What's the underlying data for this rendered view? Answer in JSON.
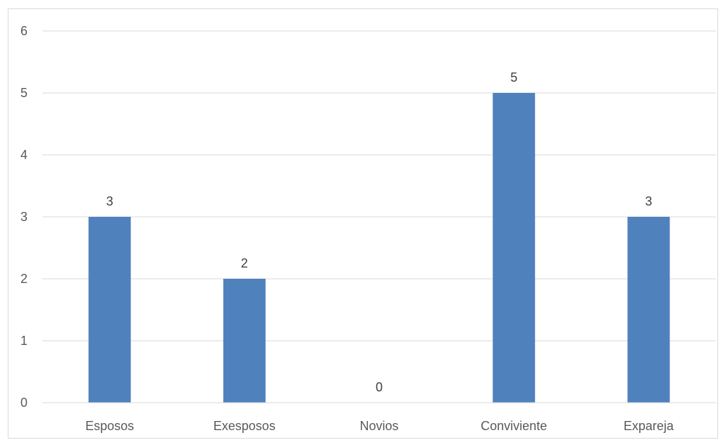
{
  "chart_data": {
    "type": "bar",
    "title": "",
    "xlabel": "",
    "ylabel": "",
    "categories": [
      "Esposos",
      "Exesposos",
      "Novios",
      "Conviviente",
      "Expareja"
    ],
    "values": [
      3,
      2,
      0,
      5,
      3
    ],
    "data_labels": [
      "3",
      "2",
      "0",
      "5",
      "3"
    ],
    "y_ticks": [
      "0",
      "1",
      "2",
      "3",
      "4",
      "5",
      "6"
    ],
    "ylim": [
      0,
      6
    ],
    "grid": true,
    "legend": "none",
    "colors": {
      "bar": "#4f81bd",
      "grid": "#d9d9d9",
      "axis": "#d9d9d9",
      "tick_text": "#595959",
      "label_text": "#404040"
    }
  }
}
